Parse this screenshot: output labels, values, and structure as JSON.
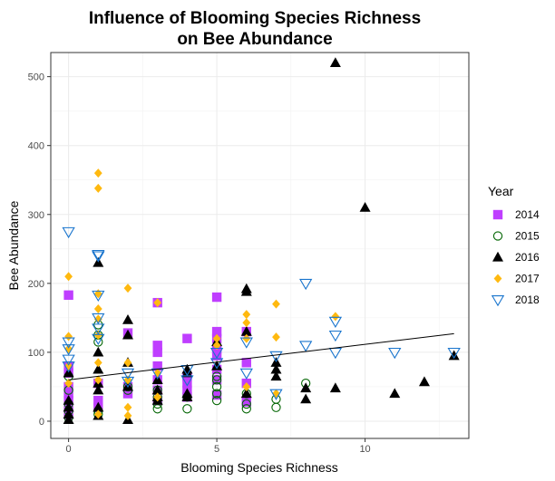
{
  "chart_data": {
    "type": "scatter",
    "title_line1": "Influence of Blooming Species Richness",
    "title_line2": "on Bee Abundance",
    "xlabel": "Blooming Species Richness",
    "ylabel": "Bee Abundance",
    "xlim": [
      -0.6,
      13.5
    ],
    "ylim": [
      -25,
      535
    ],
    "x_ticks": [
      "0",
      "5",
      "10"
    ],
    "x_tick_values": [
      0,
      5,
      10
    ],
    "y_ticks": [
      "0",
      "100",
      "200",
      "300",
      "400",
      "500"
    ],
    "y_tick_values": [
      0,
      100,
      200,
      300,
      400,
      500
    ],
    "grid": true,
    "legend_title": "Year",
    "legend_position": "right",
    "trend_line": {
      "x": [
        0,
        13
      ],
      "y": [
        60,
        127
      ]
    },
    "series": [
      {
        "name": "2014",
        "shape": "filled-square",
        "color": "#bf3eff",
        "points": [
          [
            0,
            183
          ],
          [
            0,
            80
          ],
          [
            0,
            70
          ],
          [
            0,
            50
          ],
          [
            0,
            40
          ],
          [
            0,
            30
          ],
          [
            0,
            20
          ],
          [
            0,
            10
          ],
          [
            1,
            55
          ],
          [
            1,
            30
          ],
          [
            1,
            20
          ],
          [
            2,
            128
          ],
          [
            2,
            50
          ],
          [
            2,
            40
          ],
          [
            3,
            172
          ],
          [
            3,
            110
          ],
          [
            3,
            100
          ],
          [
            3,
            80
          ],
          [
            3,
            60
          ],
          [
            3,
            45
          ],
          [
            3,
            30
          ],
          [
            4,
            120
          ],
          [
            4,
            65
          ],
          [
            4,
            55
          ],
          [
            4,
            45
          ],
          [
            4,
            35
          ],
          [
            5,
            180
          ],
          [
            5,
            130
          ],
          [
            5,
            120
          ],
          [
            5,
            105
          ],
          [
            5,
            95
          ],
          [
            5,
            75
          ],
          [
            5,
            60
          ],
          [
            5,
            38
          ],
          [
            6,
            130
          ],
          [
            6,
            85
          ],
          [
            6,
            55
          ],
          [
            6,
            28
          ]
        ]
      },
      {
        "name": "2015",
        "shape": "open-circle",
        "color": "#006400",
        "points": [
          [
            0,
            65
          ],
          [
            0,
            45
          ],
          [
            0,
            25
          ],
          [
            0,
            15
          ],
          [
            0,
            5
          ],
          [
            1,
            140
          ],
          [
            1,
            125
          ],
          [
            1,
            115
          ],
          [
            1,
            15
          ],
          [
            1,
            10
          ],
          [
            2,
            50
          ],
          [
            2,
            45
          ],
          [
            3,
            45
          ],
          [
            3,
            35
          ],
          [
            3,
            25
          ],
          [
            3,
            18
          ],
          [
            4,
            35
          ],
          [
            4,
            18
          ],
          [
            5,
            65
          ],
          [
            5,
            60
          ],
          [
            5,
            50
          ],
          [
            5,
            40
          ],
          [
            5,
            30
          ],
          [
            6,
            40
          ],
          [
            6,
            25
          ],
          [
            6,
            18
          ],
          [
            7,
            32
          ],
          [
            7,
            20
          ],
          [
            8,
            55
          ]
        ]
      },
      {
        "name": "2016",
        "shape": "filled-triangle",
        "color": "#000000",
        "points": [
          [
            0,
            70
          ],
          [
            0,
            30
          ],
          [
            0,
            20
          ],
          [
            0,
            10
          ],
          [
            0,
            2
          ],
          [
            1,
            230
          ],
          [
            1,
            100
          ],
          [
            1,
            75
          ],
          [
            1,
            55
          ],
          [
            1,
            45
          ],
          [
            1,
            20
          ],
          [
            1,
            8
          ],
          [
            2,
            147
          ],
          [
            2,
            125
          ],
          [
            2,
            85
          ],
          [
            2,
            50
          ],
          [
            2,
            2
          ],
          [
            3,
            60
          ],
          [
            3,
            45
          ],
          [
            3,
            35
          ],
          [
            3,
            30
          ],
          [
            4,
            75
          ],
          [
            4,
            70
          ],
          [
            4,
            40
          ],
          [
            4,
            35
          ],
          [
            5,
            115
          ],
          [
            5,
            80
          ],
          [
            6,
            192
          ],
          [
            6,
            188
          ],
          [
            6,
            130
          ],
          [
            6,
            40
          ],
          [
            7,
            85
          ],
          [
            7,
            75
          ],
          [
            7,
            65
          ],
          [
            8,
            48
          ],
          [
            8,
            32
          ],
          [
            9,
            520
          ],
          [
            9,
            48
          ],
          [
            10,
            310
          ],
          [
            11,
            40
          ],
          [
            12,
            57
          ],
          [
            13,
            95
          ]
        ]
      },
      {
        "name": "2017",
        "shape": "filled-diamond",
        "color": "#ffb90f",
        "points": [
          [
            0,
            210
          ],
          [
            0,
            123
          ],
          [
            0,
            105
          ],
          [
            0,
            80
          ],
          [
            0,
            55
          ],
          [
            1,
            360
          ],
          [
            1,
            338
          ],
          [
            1,
            185
          ],
          [
            1,
            163
          ],
          [
            1,
            148
          ],
          [
            1,
            125
          ],
          [
            1,
            85
          ],
          [
            1,
            60
          ],
          [
            1,
            10
          ],
          [
            2,
            193
          ],
          [
            2,
            85
          ],
          [
            2,
            60
          ],
          [
            2,
            20
          ],
          [
            2,
            8
          ],
          [
            3,
            172
          ],
          [
            3,
            70
          ],
          [
            3,
            35
          ],
          [
            5,
            120
          ],
          [
            5,
            110
          ],
          [
            6,
            155
          ],
          [
            6,
            143
          ],
          [
            6,
            120
          ],
          [
            6,
            50
          ],
          [
            7,
            170
          ],
          [
            7,
            122
          ],
          [
            7,
            40
          ],
          [
            9,
            152
          ]
        ]
      },
      {
        "name": "2018",
        "shape": "open-down-triangle",
        "color": "#1874cd",
        "points": [
          [
            0,
            275
          ],
          [
            0,
            115
          ],
          [
            0,
            105
          ],
          [
            0,
            90
          ],
          [
            0,
            80
          ],
          [
            1,
            242
          ],
          [
            1,
            240
          ],
          [
            1,
            183
          ],
          [
            1,
            150
          ],
          [
            1,
            135
          ],
          [
            1,
            120
          ],
          [
            2,
            70
          ],
          [
            2,
            58
          ],
          [
            3,
            70
          ],
          [
            4,
            75
          ],
          [
            4,
            60
          ],
          [
            5,
            100
          ],
          [
            5,
            85
          ],
          [
            6,
            115
          ],
          [
            6,
            70
          ],
          [
            7,
            95
          ],
          [
            7,
            40
          ],
          [
            8,
            200
          ],
          [
            8,
            110
          ],
          [
            9,
            145
          ],
          [
            9,
            125
          ],
          [
            9,
            100
          ],
          [
            11,
            100
          ],
          [
            13,
            100
          ]
        ]
      }
    ]
  }
}
